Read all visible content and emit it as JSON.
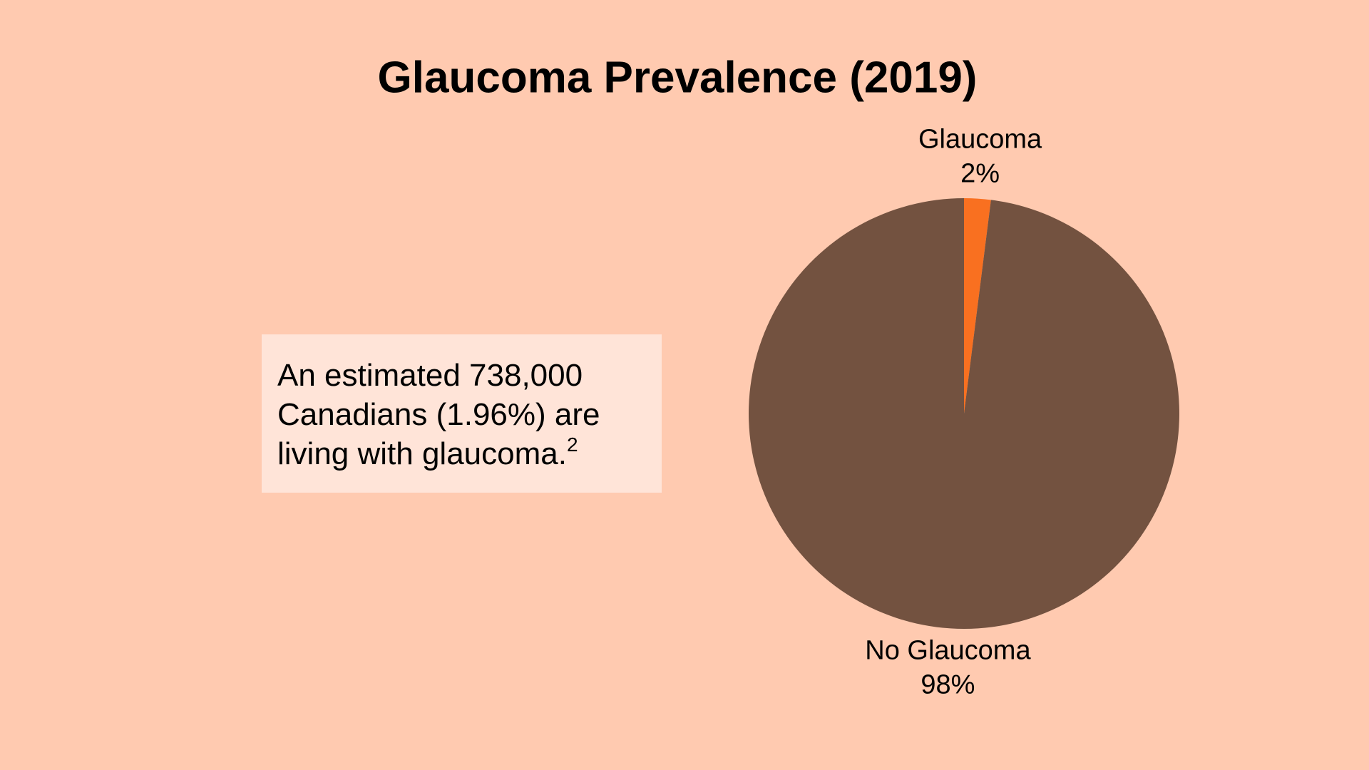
{
  "chart_data": {
    "type": "pie",
    "title": "Glaucoma Prevalence (2019)",
    "categories": [
      "Glaucoma",
      "No Glaucoma"
    ],
    "values": [
      2,
      98
    ],
    "value_labels": [
      "2%",
      "98%"
    ],
    "colors": [
      "#f97020",
      "#735240"
    ],
    "start_angle": 90,
    "direction": "clockwise",
    "annotation": {
      "text": "An estimated 738,000 Canadians (1.96%) are living with glaucoma.",
      "superscript": "2"
    }
  }
}
